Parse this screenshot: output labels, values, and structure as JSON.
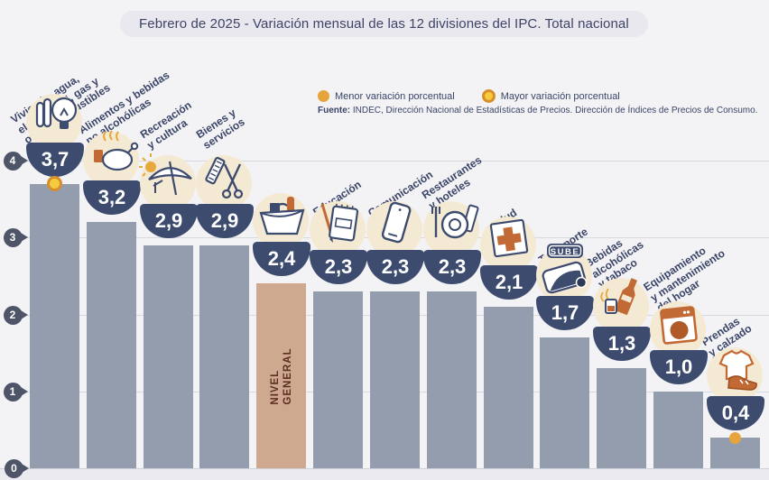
{
  "title": "Febrero de 2025 - Variación mensual de las 12 divisiones del IPC. Total nacional",
  "legend": {
    "menor": "Menor variación porcentual",
    "mayor": "Mayor variación porcentual"
  },
  "source": {
    "label": "Fuente:",
    "text": " INDEC, Dirección Nacional de Estadísticas de Precios. Dirección de Índices de Precios de Consumo."
  },
  "y_axis": {
    "ticks": [
      4,
      3,
      2,
      1,
      0
    ]
  },
  "colors": {
    "background": "#F3F3F6",
    "bar": "#939DAD",
    "highlight_bar": "#CFA890",
    "bowl_navy": "#3D4B6F",
    "icon_circle": "#F4E9D3",
    "label_text": "#3A4466",
    "menor_dot": "#E8A43C",
    "mayor_dot_fill": "#F6CB41",
    "mayor_dot_ring": "#D78F2B",
    "nivel_text": "#5C2E20",
    "accent_orange": "#C26A35"
  },
  "chart_data": {
    "type": "bar",
    "title": "Febrero de 2025 - Variación mensual de las 12 divisiones del IPC. Total nacional",
    "period": "Febrero de 2025",
    "unit": "variación porcentual mensual",
    "ylim": [
      0,
      4
    ],
    "yticks": [
      0,
      1,
      2,
      3,
      4
    ],
    "grid": true,
    "highlight_category": "Nivel general",
    "categories": [
      {
        "name": "Vivienda, agua, electricidad, gas y otros combustibles",
        "label_lines": [
          "Vivienda, agua,",
          "electricidad, gas y",
          "otros combustibles"
        ],
        "value": 3.7,
        "value_label": "3,7",
        "icon": "light-bulb-icon",
        "marker": "mayor"
      },
      {
        "name": "Alimentos y bebidas no alcohólicas",
        "label_lines": [
          "Alimentos y bebidas",
          "no alcohólicas"
        ],
        "value": 3.2,
        "value_label": "3,2",
        "icon": "roast-chicken-icon"
      },
      {
        "name": "Recreación y cultura",
        "label_lines": [
          "Recreación",
          "y cultura"
        ],
        "value": 2.9,
        "value_label": "2,9",
        "icon": "beach-umbrella-icon"
      },
      {
        "name": "Bienes y servicios",
        "label_lines": [
          "Bienes y",
          "servicios"
        ],
        "value": 2.9,
        "value_label": "2,9",
        "icon": "scissors-comb-icon"
      },
      {
        "name": "Nivel general",
        "label_lines": [
          "NIVEL",
          "GENERAL"
        ],
        "value": 2.4,
        "value_label": "2,4",
        "icon": "shopping-basket-icon",
        "highlight": true,
        "in_bar_label": true
      },
      {
        "name": "Educación",
        "label_lines": [
          "Educación"
        ],
        "value": 2.3,
        "value_label": "2,3",
        "icon": "notebook-pencil-icon"
      },
      {
        "name": "Comunicación",
        "label_lines": [
          "Comunicación"
        ],
        "value": 2.3,
        "value_label": "2,3",
        "icon": "smartphone-icon"
      },
      {
        "name": "Restaurantes y hoteles",
        "label_lines": [
          "Restaurantes",
          "y hoteles"
        ],
        "value": 2.3,
        "value_label": "2,3",
        "icon": "plate-fork-icon"
      },
      {
        "name": "Salud",
        "label_lines": [
          "Salud"
        ],
        "value": 2.1,
        "value_label": "2,1",
        "icon": "medical-cross-icon"
      },
      {
        "name": "Transporte",
        "label_lines": [
          "Transporte"
        ],
        "value": 1.7,
        "value_label": "1,7",
        "icon": "sube-card-icon",
        "icon_text": "SUBE"
      },
      {
        "name": "Bebidas alcohólicas y tabaco",
        "label_lines": [
          "Bebidas",
          "alcohólicas",
          "y tabaco"
        ],
        "value": 1.3,
        "value_label": "1,3",
        "icon": "bottle-glass-icon"
      },
      {
        "name": "Equipamiento y mantenimiento del hogar",
        "label_lines": [
          "Equipamiento",
          "y mantenimiento",
          "del hogar"
        ],
        "value": 1.0,
        "value_label": "1,0",
        "icon": "washing-machine-icon"
      },
      {
        "name": "Prendas y calzado",
        "label_lines": [
          "Prendas",
          "y calzado"
        ],
        "value": 0.4,
        "value_label": "0,4",
        "icon": "tshirt-shoe-icon",
        "marker": "menor"
      }
    ]
  }
}
